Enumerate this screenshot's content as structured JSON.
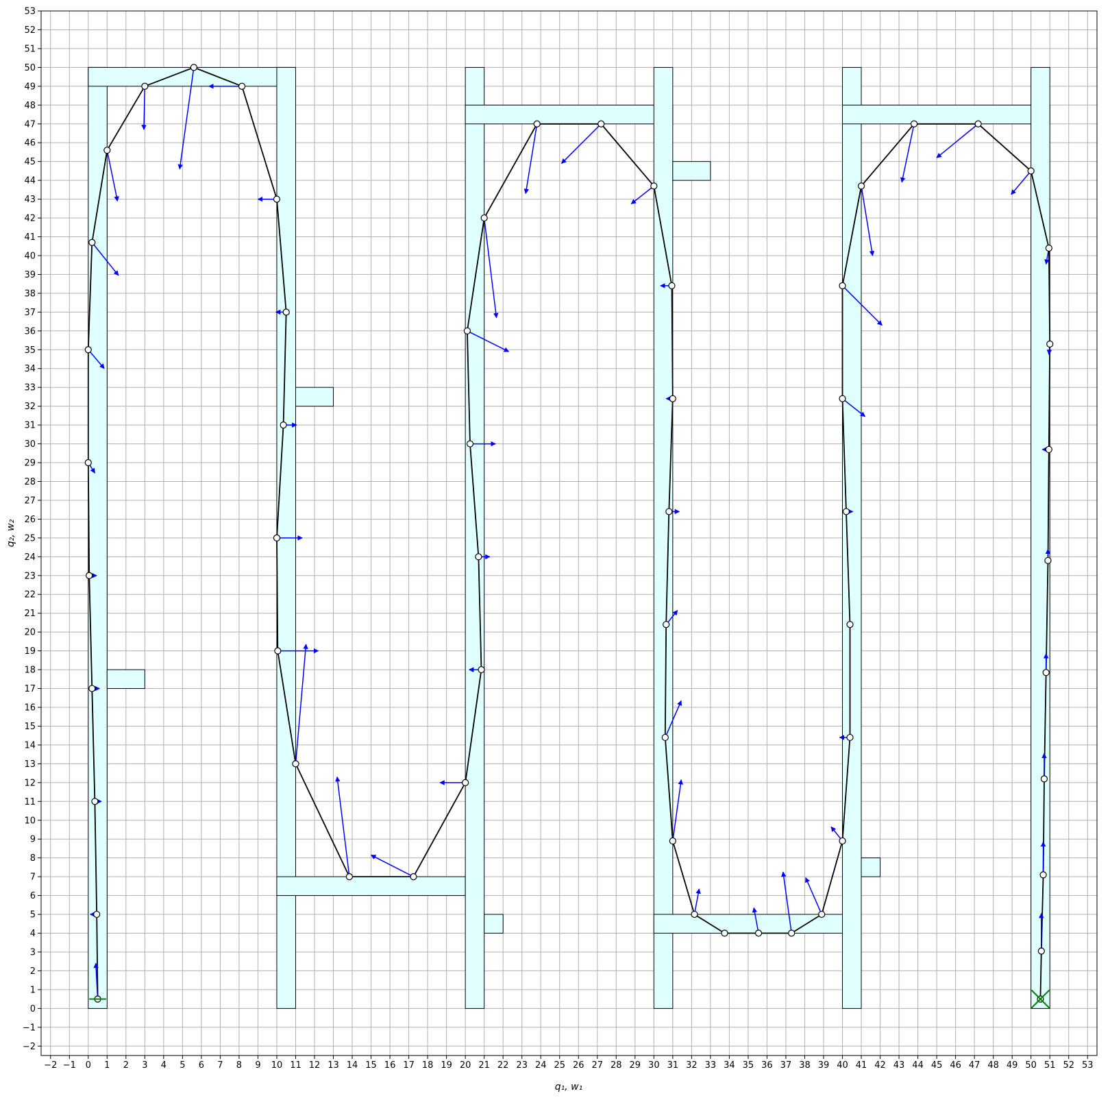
{
  "chart_data": {
    "type": "scatter",
    "title": "",
    "xlabel": "q₁, w₁",
    "ylabel": "q₂, w₂",
    "xlim": [
      -2.5,
      53.5
    ],
    "ylim": [
      -2.5,
      53
    ],
    "grid": true,
    "x_ticks": [
      -2,
      -1,
      0,
      1,
      2,
      3,
      4,
      5,
      6,
      7,
      8,
      9,
      10,
      11,
      12,
      13,
      14,
      15,
      16,
      17,
      18,
      19,
      20,
      21,
      22,
      23,
      24,
      25,
      26,
      27,
      28,
      29,
      30,
      31,
      32,
      33,
      34,
      35,
      36,
      37,
      38,
      39,
      40,
      41,
      42,
      43,
      44,
      45,
      46,
      47,
      48,
      49,
      50,
      51,
      52,
      53
    ],
    "y_ticks": [
      -2,
      -1,
      0,
      1,
      2,
      3,
      4,
      5,
      6,
      7,
      8,
      9,
      10,
      11,
      12,
      13,
      14,
      15,
      16,
      17,
      18,
      19,
      20,
      21,
      22,
      23,
      24,
      25,
      26,
      27,
      28,
      29,
      30,
      31,
      32,
      33,
      34,
      35,
      36,
      37,
      38,
      39,
      40,
      41,
      42,
      43,
      44,
      45,
      46,
      47,
      48,
      49,
      50,
      51,
      52,
      53
    ],
    "colors": {
      "region_fill": "#e0ffff",
      "region_stroke": "#000000",
      "path": "#000000",
      "arrow": "#0000ff",
      "start_marker": "#008000",
      "goal_marker": "#008000",
      "grid": "#b0b0b0"
    },
    "regions": [
      {
        "x": [
          0,
          1
        ],
        "y": [
          0,
          50
        ]
      },
      {
        "x": [
          0,
          11
        ],
        "y": [
          49,
          50
        ]
      },
      {
        "x": [
          10,
          11
        ],
        "y": [
          0,
          50
        ]
      },
      {
        "x": [
          1,
          3
        ],
        "y": [
          17,
          18
        ]
      },
      {
        "x": [
          11,
          13
        ],
        "y": [
          32,
          33
        ]
      },
      {
        "x": [
          10,
          20
        ],
        "y": [
          6,
          7
        ]
      },
      {
        "x": [
          20,
          21
        ],
        "y": [
          0,
          50
        ]
      },
      {
        "x": [
          21,
          22
        ],
        "y": [
          4,
          5
        ]
      },
      {
        "x": [
          20,
          31
        ],
        "y": [
          47,
          48
        ]
      },
      {
        "x": [
          30,
          31
        ],
        "y": [
          0,
          50
        ]
      },
      {
        "x": [
          31,
          33
        ],
        "y": [
          44,
          45
        ]
      },
      {
        "x": [
          30,
          40
        ],
        "y": [
          4,
          5
        ]
      },
      {
        "x": [
          40,
          41
        ],
        "y": [
          0,
          50
        ]
      },
      {
        "x": [
          41,
          42
        ],
        "y": [
          7,
          8
        ]
      },
      {
        "x": [
          40,
          51
        ],
        "y": [
          47,
          48
        ]
      },
      {
        "x": [
          50,
          51
        ],
        "y": [
          0,
          50
        ]
      }
    ],
    "path": [
      [
        0.5,
        0.5
      ],
      [
        0.45,
        5.0
      ],
      [
        0.35,
        11.0
      ],
      [
        0.2,
        17.0
      ],
      [
        0.05,
        23.0
      ],
      [
        0.0,
        29.0
      ],
      [
        0.0,
        35.0
      ],
      [
        0.2,
        40.7
      ],
      [
        1.0,
        45.6
      ],
      [
        3.0,
        49.0
      ],
      [
        5.6,
        50.0
      ],
      [
        8.15,
        49.0
      ],
      [
        10.0,
        43.0
      ],
      [
        10.5,
        37.0
      ],
      [
        10.35,
        31.0
      ],
      [
        10.0,
        25.0
      ],
      [
        10.05,
        19.0
      ],
      [
        11.0,
        13.0
      ],
      [
        13.85,
        7.0
      ],
      [
        17.25,
        7.0
      ],
      [
        20.0,
        12.0
      ],
      [
        20.85,
        18.0
      ],
      [
        20.7,
        24.0
      ],
      [
        20.25,
        30.0
      ],
      [
        20.1,
        36.0
      ],
      [
        21.0,
        42.0
      ],
      [
        23.8,
        47.0
      ],
      [
        27.2,
        47.0
      ],
      [
        30.0,
        43.7
      ],
      [
        30.95,
        38.4
      ],
      [
        31.0,
        32.4
      ],
      [
        30.8,
        26.4
      ],
      [
        30.65,
        20.4
      ],
      [
        30.6,
        14.4
      ],
      [
        31.0,
        8.9
      ],
      [
        32.15,
        5.0
      ],
      [
        33.75,
        4.0
      ],
      [
        35.55,
        4.0
      ],
      [
        37.3,
        4.0
      ],
      [
        38.9,
        5.0
      ],
      [
        40.0,
        8.9
      ],
      [
        40.4,
        14.4
      ],
      [
        40.4,
        20.4
      ],
      [
        40.2,
        26.4
      ],
      [
        40.0,
        32.4
      ],
      [
        40.0,
        38.4
      ],
      [
        41.0,
        43.7
      ],
      [
        43.8,
        47.0
      ],
      [
        47.2,
        47.0
      ],
      [
        50.0,
        44.5
      ],
      [
        50.95,
        40.4
      ],
      [
        51.0,
        35.3
      ],
      [
        50.95,
        29.7
      ],
      [
        50.9,
        23.8
      ],
      [
        50.8,
        17.85
      ],
      [
        50.7,
        12.2
      ],
      [
        50.65,
        7.1
      ],
      [
        50.55,
        3.05
      ],
      [
        50.5,
        0.5
      ]
    ],
    "arrows": [
      [
        0.5,
        0.5,
        -0.1,
        1.9
      ],
      [
        0.45,
        5.0,
        -0.35,
        0.0
      ],
      [
        0.35,
        11.0,
        0.35,
        0.0
      ],
      [
        0.2,
        17.0,
        0.4,
        0.0
      ],
      [
        0.05,
        23.0,
        0.4,
        0.0
      ],
      [
        0.0,
        29.0,
        0.35,
        -0.55
      ],
      [
        0.0,
        35.0,
        0.85,
        -1.0
      ],
      [
        0.2,
        40.7,
        1.4,
        -1.75
      ],
      [
        1.0,
        45.6,
        0.55,
        -2.7
      ],
      [
        3.0,
        49.0,
        -0.05,
        -2.3
      ],
      [
        5.6,
        50.0,
        -0.75,
        -5.4
      ],
      [
        8.15,
        49.0,
        -1.75,
        0.0
      ],
      [
        10.0,
        43.0,
        -1.0,
        0.0
      ],
      [
        10.5,
        37.0,
        -0.55,
        0.0
      ],
      [
        10.35,
        31.0,
        0.7,
        0.0
      ],
      [
        10.0,
        25.0,
        1.35,
        0.0
      ],
      [
        10.05,
        19.0,
        2.15,
        0.0
      ],
      [
        11.0,
        13.0,
        0.55,
        6.35
      ],
      [
        13.85,
        7.0,
        -0.65,
        5.3
      ],
      [
        17.25,
        7.0,
        -2.25,
        1.15
      ],
      [
        20.0,
        12.0,
        -1.35,
        0.0
      ],
      [
        20.85,
        18.0,
        -0.65,
        0.0
      ],
      [
        20.7,
        24.0,
        0.6,
        0.0
      ],
      [
        20.25,
        30.0,
        1.35,
        0.0
      ],
      [
        20.1,
        36.0,
        2.2,
        -1.1
      ],
      [
        21.0,
        42.0,
        0.65,
        -5.3
      ],
      [
        23.8,
        47.0,
        -0.6,
        -3.7
      ],
      [
        27.2,
        47.0,
        -2.1,
        -2.1
      ],
      [
        30.0,
        43.7,
        -1.2,
        -0.95
      ],
      [
        30.95,
        38.4,
        -0.6,
        0.0
      ],
      [
        31.0,
        32.4,
        -0.35,
        0.0
      ],
      [
        30.8,
        26.4,
        0.55,
        0.0
      ],
      [
        30.65,
        20.4,
        0.6,
        0.75
      ],
      [
        30.6,
        14.4,
        0.85,
        1.95
      ],
      [
        31.0,
        8.9,
        0.45,
        3.25
      ],
      [
        32.15,
        5.0,
        0.25,
        1.35
      ],
      [
        35.55,
        4.0,
        -0.25,
        1.35
      ],
      [
        37.3,
        4.0,
        -0.45,
        3.25
      ],
      [
        38.9,
        5.0,
        -0.85,
        1.95
      ],
      [
        40.0,
        8.9,
        -0.6,
        0.75
      ],
      [
        40.4,
        14.4,
        -0.55,
        0.0
      ],
      [
        40.2,
        26.4,
        0.35,
        0.0
      ],
      [
        40.0,
        32.4,
        1.2,
        -0.95
      ],
      [
        40.0,
        38.4,
        2.1,
        -2.1
      ],
      [
        41.0,
        43.7,
        0.6,
        -3.7
      ],
      [
        43.8,
        47.0,
        -0.65,
        -3.1
      ],
      [
        47.2,
        47.0,
        -2.2,
        -1.8
      ],
      [
        50.0,
        44.5,
        -1.05,
        -1.25
      ],
      [
        50.95,
        40.4,
        -0.15,
        -0.85
      ],
      [
        51.0,
        35.3,
        -0.05,
        -0.55
      ],
      [
        50.95,
        29.7,
        -0.35,
        0.0
      ],
      [
        50.9,
        23.8,
        0.0,
        0.6
      ],
      [
        50.8,
        17.85,
        0.0,
        1.0
      ],
      [
        50.7,
        12.2,
        0.0,
        1.35
      ],
      [
        50.65,
        7.1,
        0.0,
        1.75
      ],
      [
        50.55,
        3.05,
        0.0,
        2.0
      ]
    ],
    "start": [
      0.5,
      0.5
    ],
    "goal": [
      50.5,
      0.5
    ]
  }
}
